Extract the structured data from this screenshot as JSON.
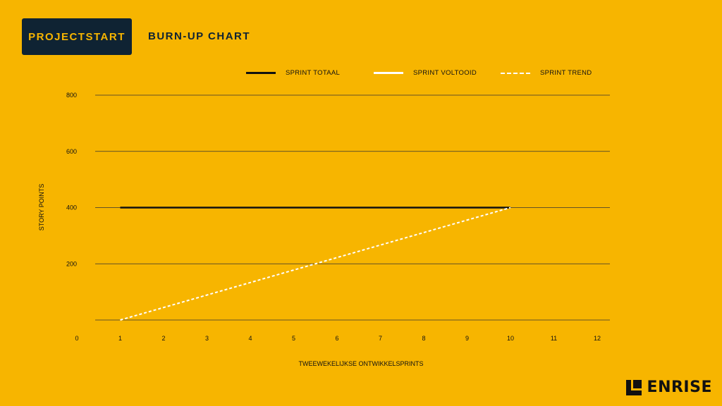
{
  "header": {
    "badge_label": "PROJECTSTART",
    "title": "BURN-UP CHART"
  },
  "legend": {
    "items": [
      {
        "label": "SPRINT TOTAAL",
        "style": "solid",
        "color": "#111111"
      },
      {
        "label": "SPRINT VOLTOOID",
        "style": "solid",
        "color": "#FFFFFF"
      },
      {
        "label": "SPRINT TREND",
        "style": "dashed",
        "color": "#FFFFFF"
      }
    ]
  },
  "logo": {
    "text": "ENRISE"
  },
  "colors": {
    "background": "#F7B500",
    "navy": "#0F2333",
    "ink": "#111111",
    "white": "#FFFFFF"
  },
  "chart_data": {
    "type": "line",
    "title": "BURN-UP CHART",
    "xlabel": "TWEEWEKELIJKSE ONTWIKKELSPRINTS",
    "ylabel": "STORY POINTS",
    "x_ticks": [
      0,
      1,
      2,
      3,
      4,
      5,
      6,
      7,
      8,
      9,
      10,
      11,
      12
    ],
    "y_ticks": [
      200,
      400,
      600,
      800
    ],
    "xlim": [
      0,
      12
    ],
    "ylim": [
      0,
      800
    ],
    "grid": true,
    "legend_position": "top",
    "series": [
      {
        "name": "SPRINT TOTAAL",
        "style": "solid",
        "color": "#111111",
        "x": [
          1,
          10
        ],
        "y": [
          400,
          400
        ]
      },
      {
        "name": "SPRINT VOLTOOID",
        "style": "solid",
        "color": "#FFFFFF",
        "x": [],
        "y": []
      },
      {
        "name": "SPRINT TREND",
        "style": "dashed",
        "color": "#FFFFFF",
        "x": [
          1,
          10
        ],
        "y": [
          0,
          400
        ]
      }
    ]
  }
}
